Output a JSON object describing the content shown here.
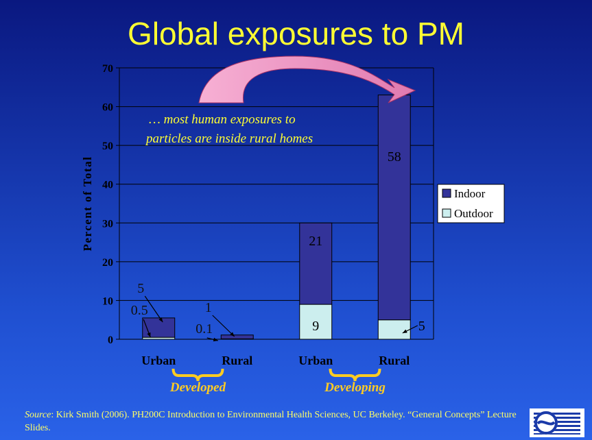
{
  "slide": {
    "title": "Global exposures to PM",
    "source_prefix": "Source",
    "source_text": ": Kirk Smith (2006). PH200C Introduction to Environmental Health Sciences, UC Berkeley.  “General Concepts” Lecture Slides."
  },
  "colors": {
    "indoor": "#333399",
    "outdoor": "#cceeee",
    "text_yellow": "#ffff33",
    "arrow_pink": "#f0a0c8"
  },
  "chart_data": {
    "type": "bar",
    "stacked": true,
    "ylabel": "Percent of Total",
    "ylim": [
      0,
      70
    ],
    "yticks": [
      0,
      10,
      20,
      30,
      40,
      50,
      60,
      70
    ],
    "grid": true,
    "legend_position": "right",
    "categories": [
      "Urban",
      "Rural",
      "Urban",
      "Rural"
    ],
    "groups": [
      {
        "label": "Developed",
        "categories": [
          0,
          1
        ]
      },
      {
        "label": "Developing",
        "categories": [
          2,
          3
        ]
      }
    ],
    "series": [
      {
        "name": "Outdoor",
        "values": [
          0.5,
          0.1,
          9,
          5
        ]
      },
      {
        "name": "Indoor",
        "values": [
          5,
          1,
          21,
          58
        ]
      }
    ],
    "value_labels": {
      "Outdoor": [
        "0.5",
        "0.1",
        "9",
        "5"
      ],
      "Indoor": [
        "5",
        "1",
        "21",
        "58"
      ]
    },
    "annotation": "… most human exposures to particles are inside rural homes"
  }
}
